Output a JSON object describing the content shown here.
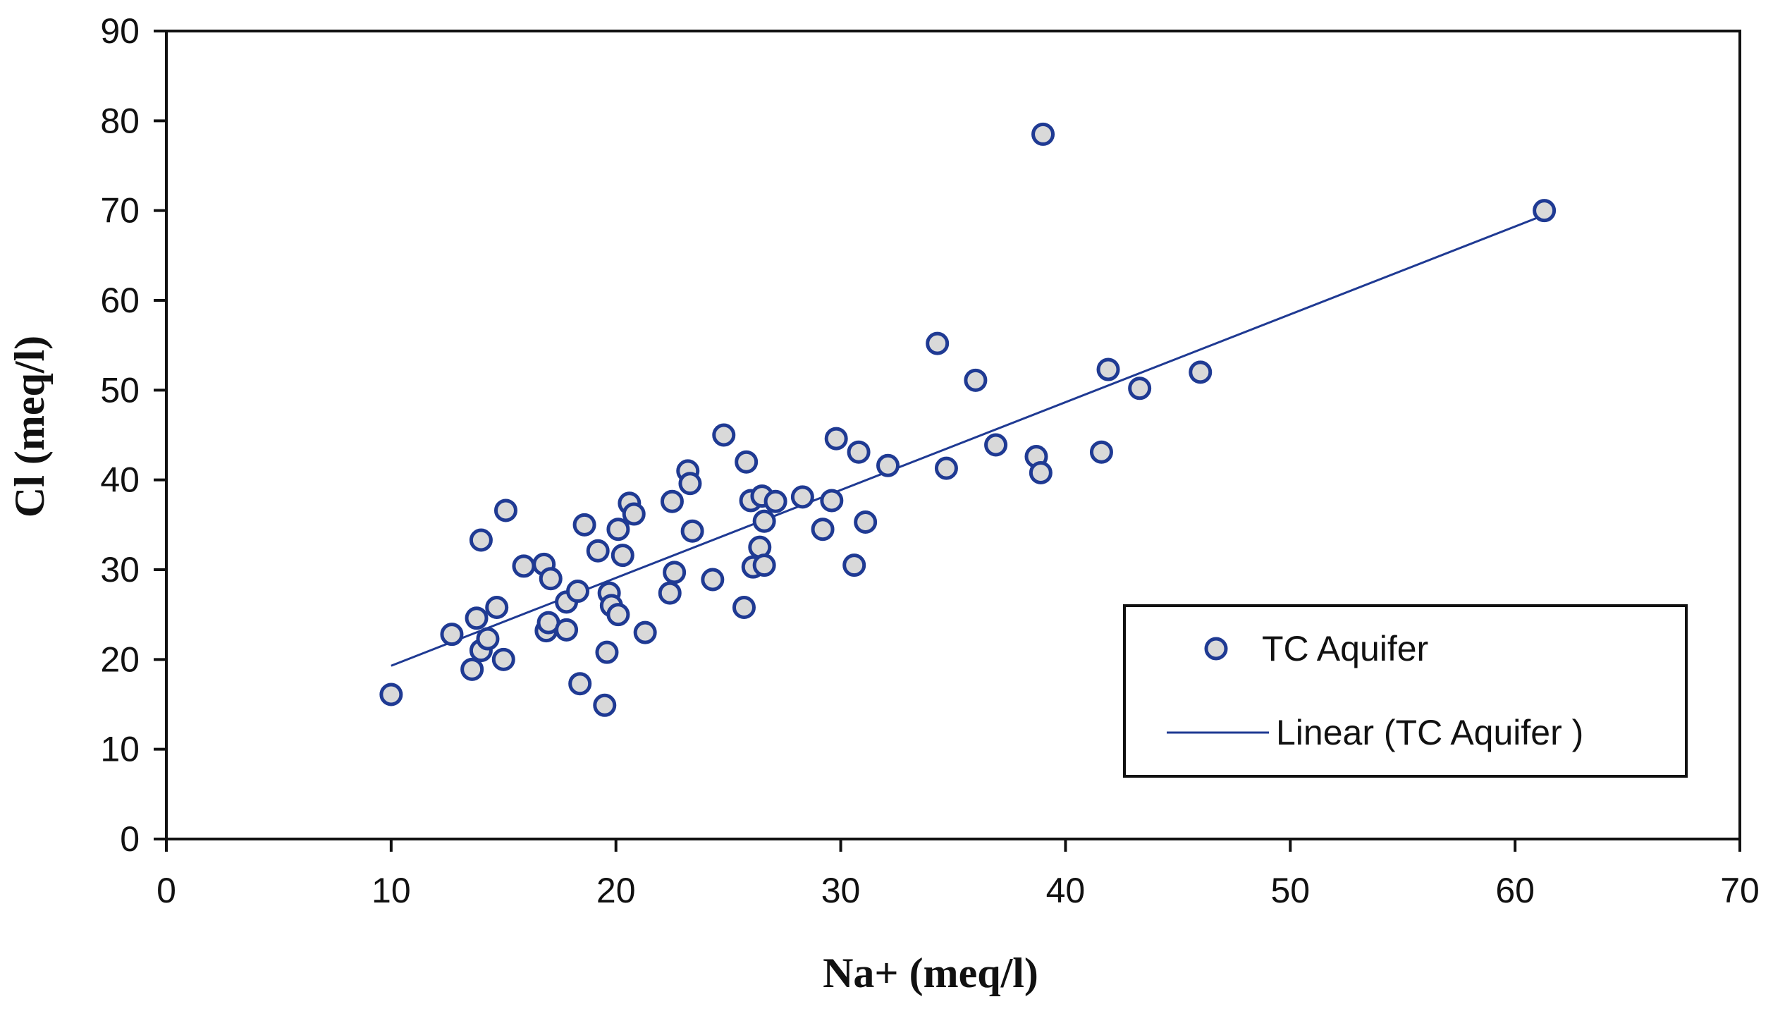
{
  "chart_data": {
    "type": "scatter",
    "title": "",
    "xlabel": "Na+ (meq/l)",
    "ylabel": "Cl (meq/l)",
    "xlim": [
      0,
      70
    ],
    "ylim": [
      0,
      90
    ],
    "xticks": [
      0,
      10,
      20,
      30,
      40,
      50,
      60,
      70
    ],
    "yticks": [
      0,
      10,
      20,
      30,
      40,
      50,
      60,
      70,
      80,
      90
    ],
    "grid": false,
    "legend_position": "bottom-right",
    "series": [
      {
        "name": "TC Aquifer",
        "kind": "scatter",
        "color": "#1f3a93",
        "fill": "#d9d9d9",
        "points": [
          [
            10.0,
            16.1
          ],
          [
            12.7,
            22.8
          ],
          [
            13.6,
            18.9
          ],
          [
            13.8,
            24.6
          ],
          [
            14.0,
            21.0
          ],
          [
            14.0,
            33.3
          ],
          [
            14.3,
            22.3
          ],
          [
            14.7,
            25.8
          ],
          [
            15.0,
            20.0
          ],
          [
            15.1,
            36.6
          ],
          [
            15.9,
            30.4
          ],
          [
            16.8,
            30.6
          ],
          [
            16.9,
            23.2
          ],
          [
            17.0,
            24.1
          ],
          [
            17.1,
            29.0
          ],
          [
            17.8,
            26.4
          ],
          [
            17.8,
            23.3
          ],
          [
            18.3,
            27.6
          ],
          [
            18.4,
            17.3
          ],
          [
            18.6,
            35.0
          ],
          [
            19.2,
            32.1
          ],
          [
            19.5,
            14.9
          ],
          [
            19.6,
            20.8
          ],
          [
            19.7,
            27.4
          ],
          [
            19.8,
            26.0
          ],
          [
            20.1,
            34.5
          ],
          [
            20.1,
            25.0
          ],
          [
            20.3,
            31.6
          ],
          [
            20.6,
            37.4
          ],
          [
            20.8,
            36.2
          ],
          [
            21.3,
            23.0
          ],
          [
            22.4,
            27.4
          ],
          [
            22.5,
            37.6
          ],
          [
            22.6,
            29.7
          ],
          [
            23.2,
            41.0
          ],
          [
            23.3,
            39.6
          ],
          [
            23.4,
            34.3
          ],
          [
            24.3,
            28.9
          ],
          [
            24.8,
            45.0
          ],
          [
            25.7,
            25.8
          ],
          [
            25.8,
            42.0
          ],
          [
            26.0,
            37.7
          ],
          [
            26.1,
            30.3
          ],
          [
            26.4,
            32.5
          ],
          [
            26.5,
            38.2
          ],
          [
            26.6,
            35.4
          ],
          [
            26.6,
            30.5
          ],
          [
            27.1,
            37.6
          ],
          [
            28.3,
            38.1
          ],
          [
            29.2,
            34.5
          ],
          [
            29.6,
            37.7
          ],
          [
            29.8,
            44.6
          ],
          [
            30.6,
            30.5
          ],
          [
            30.8,
            43.1
          ],
          [
            31.1,
            35.3
          ],
          [
            32.1,
            41.6
          ],
          [
            34.3,
            55.2
          ],
          [
            34.7,
            41.3
          ],
          [
            36.0,
            51.1
          ],
          [
            36.9,
            43.9
          ],
          [
            38.7,
            42.6
          ],
          [
            38.9,
            40.8
          ],
          [
            39.0,
            78.5
          ],
          [
            41.6,
            43.1
          ],
          [
            41.9,
            52.3
          ],
          [
            43.3,
            50.2
          ],
          [
            46.0,
            52.0
          ],
          [
            61.3,
            70.0
          ]
        ]
      },
      {
        "name": "Linear (TC Aquifer )",
        "kind": "line",
        "color": "#1f3a93",
        "x": [
          10.0,
          61.3
        ],
        "y": [
          19.3,
          69.5
        ]
      }
    ]
  }
}
